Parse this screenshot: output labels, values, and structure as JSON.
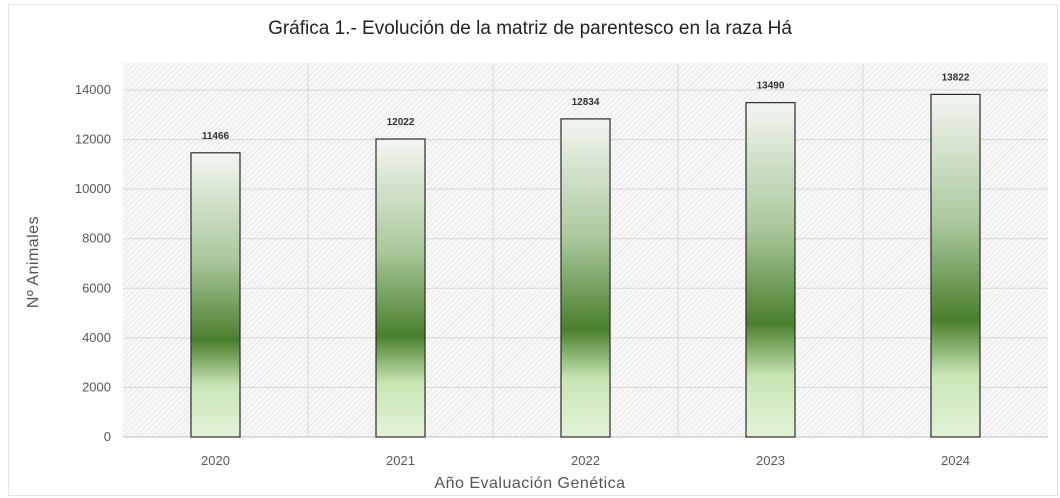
{
  "chart_data": {
    "type": "bar",
    "title": "Gráfica 1.- Evolución de la matriz de parentesco en la raza Há",
    "xlabel": "Año Evaluación Genética",
    "ylabel": "Nº Animales",
    "categories": [
      "2020",
      "2021",
      "2022",
      "2023",
      "2024"
    ],
    "values": [
      11466,
      12022,
      12834,
      13490,
      13822
    ],
    "data_labels": [
      "11466",
      "12022",
      "12834",
      "13490",
      "13822"
    ],
    "ylim": [
      0,
      14000
    ],
    "yticks": [
      0,
      2000,
      4000,
      6000,
      8000,
      10000,
      12000,
      14000
    ],
    "ytick_labels": [
      "0",
      "2000",
      "4000",
      "6000",
      "8000",
      "10000",
      "12000",
      "14000"
    ],
    "grid": true,
    "legend": "none",
    "colors": {
      "bar_dark": "#4a7f2c",
      "bar_light": "#c9e6b5",
      "bar_top": "#f3f6f1",
      "bar_border": "#2b2b2b",
      "grid": "#d9d9d9"
    }
  }
}
